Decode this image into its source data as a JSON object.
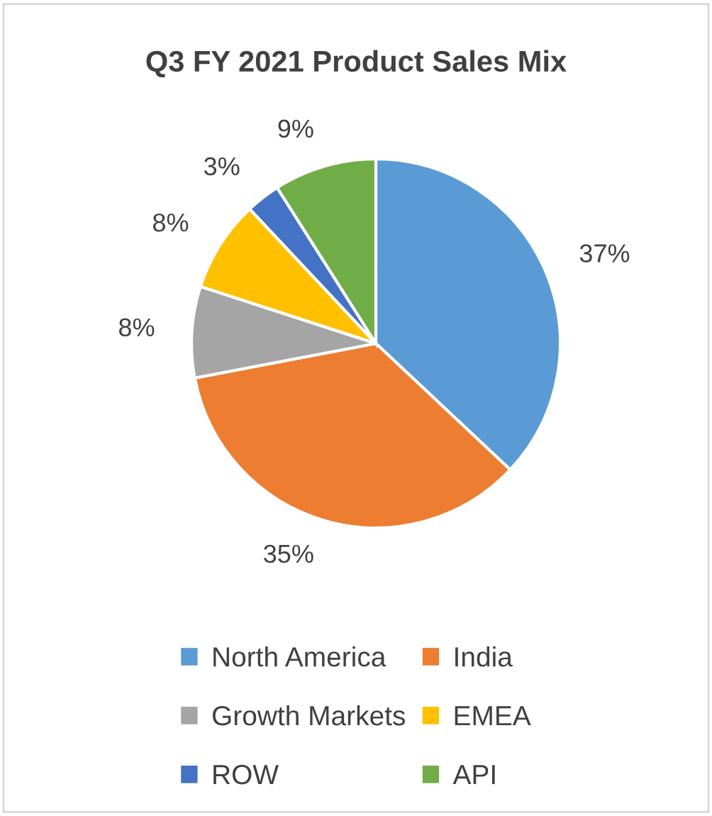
{
  "chart_data": {
    "type": "pie",
    "title": "Q3 FY 2021 Product Sales Mix",
    "categories": [
      "North America",
      "India",
      "Growth Markets",
      "EMEA",
      "ROW",
      "API"
    ],
    "values": [
      37,
      35,
      8,
      8,
      3,
      9
    ],
    "value_labels": [
      "37%",
      "35%",
      "8%",
      "8%",
      "3%",
      "9%"
    ],
    "colors": [
      "#5b9bd5",
      "#ed7d31",
      "#a5a5a5",
      "#ffc000",
      "#4472c4",
      "#70ad47"
    ],
    "legend": "bottom"
  }
}
